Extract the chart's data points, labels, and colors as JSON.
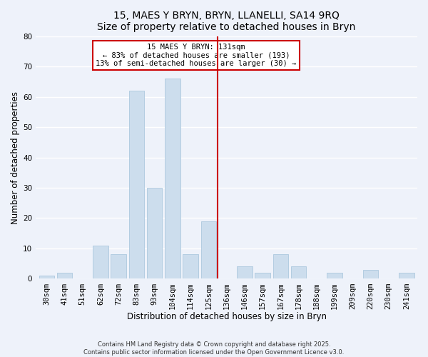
{
  "title": "15, MAES Y BRYN, BRYN, LLANELLI, SA14 9RQ",
  "subtitle": "Size of property relative to detached houses in Bryn",
  "xlabel": "Distribution of detached houses by size in Bryn",
  "ylabel": "Number of detached properties",
  "bar_labels": [
    "30sqm",
    "41sqm",
    "51sqm",
    "62sqm",
    "72sqm",
    "83sqm",
    "93sqm",
    "104sqm",
    "114sqm",
    "125sqm",
    "136sqm",
    "146sqm",
    "157sqm",
    "167sqm",
    "178sqm",
    "188sqm",
    "199sqm",
    "209sqm",
    "220sqm",
    "230sqm",
    "241sqm"
  ],
  "bar_values": [
    1,
    2,
    0,
    11,
    8,
    62,
    30,
    66,
    8,
    19,
    0,
    4,
    2,
    8,
    4,
    0,
    2,
    0,
    3,
    0,
    2
  ],
  "bar_color": "#ccdded",
  "bar_edge_color": "#adc8de",
  "vline_x_index": 9.5,
  "vline_color": "#cc0000",
  "ylim": [
    0,
    80
  ],
  "yticks": [
    0,
    10,
    20,
    30,
    40,
    50,
    60,
    70,
    80
  ],
  "annotation_title": "15 MAES Y BRYN: 131sqm",
  "annotation_line1": "← 83% of detached houses are smaller (193)",
  "annotation_line2": "13% of semi-detached houses are larger (30) →",
  "annotation_box_color": "white",
  "annotation_edge_color": "#cc0000",
  "footnote1": "Contains HM Land Registry data © Crown copyright and database right 2025.",
  "footnote2": "Contains public sector information licensed under the Open Government Licence v3.0.",
  "bg_color": "#eef2fa",
  "grid_color": "#ffffff",
  "title_fontsize": 10,
  "axis_label_fontsize": 8.5,
  "tick_fontsize": 7.5,
  "annotation_fontsize": 7.5,
  "footnote_fontsize": 6
}
